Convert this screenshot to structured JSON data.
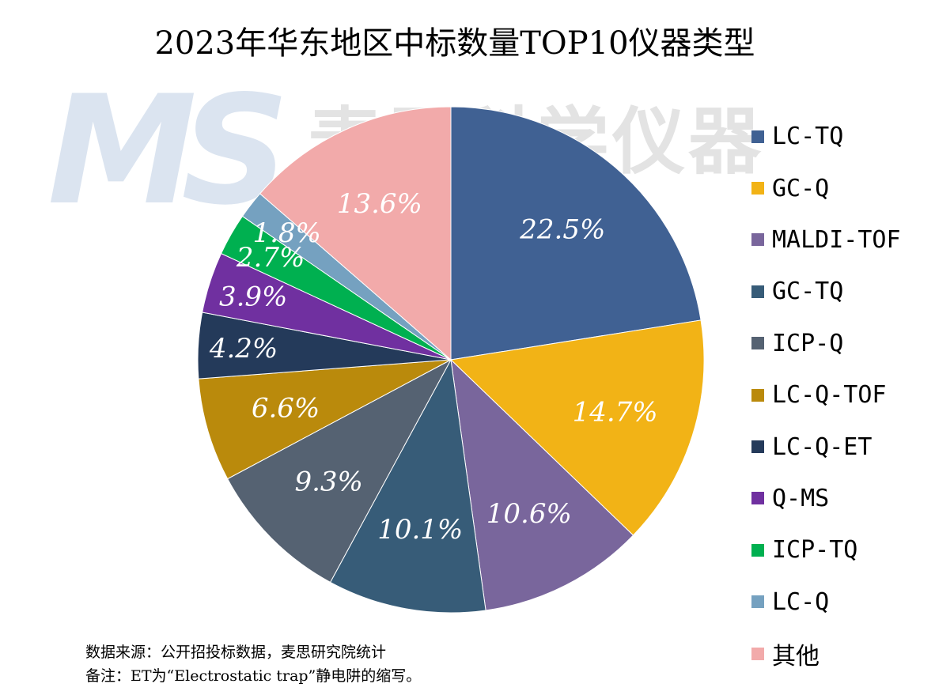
{
  "watermark": {
    "logo": "MS",
    "text": "麦思科学仪器"
  },
  "chart_data": {
    "type": "pie",
    "title": "2023年华东地区中标数量TOP10仪器类型",
    "categories": [
      "LC-TQ",
      "GC-Q",
      "MALDI-TOF",
      "GC-TQ",
      "ICP-Q",
      "LC-Q-TOF",
      "LC-Q-ET",
      "Q-MS",
      "ICP-TQ",
      "LC-Q",
      "其他"
    ],
    "values": [
      22.5,
      14.7,
      10.6,
      10.1,
      9.3,
      6.6,
      4.2,
      3.9,
      2.7,
      1.8,
      13.6
    ],
    "labels": [
      "22.5%",
      "14.7%",
      "10.6%",
      "10.1%",
      "9.3%",
      "6.6%",
      "4.2%",
      "3.9%",
      "2.7%",
      "1.8%",
      "13.6%"
    ],
    "colors": [
      "#406193",
      "#F2B316",
      "#79669C",
      "#375C78",
      "#556272",
      "#BA8A0C",
      "#243A5A",
      "#7030A0",
      "#00B050",
      "#75A1C0",
      "#F2AAAA"
    ],
    "start_angle": "top, clockwise",
    "legend": "right"
  },
  "notes": {
    "source": "数据来源：公开招投标数据，麦思研究院统计",
    "remark": "备注：ET为“Electrostatic trap”静电阱的缩写。"
  }
}
